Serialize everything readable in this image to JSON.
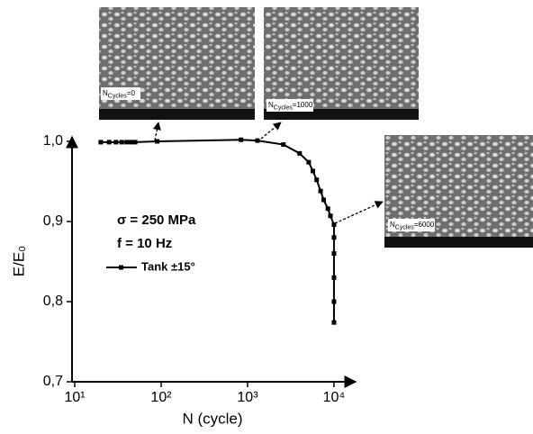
{
  "chart_data": {
    "type": "line",
    "xlabel": "N (cycle)",
    "ylabel": "E/E₀",
    "xlog": true,
    "xlim": [
      10,
      17800
    ],
    "ylim": [
      0.7,
      1.0
    ],
    "xticks": [
      {
        "value": 10,
        "label": "10¹"
      },
      {
        "value": 100,
        "label": "10²"
      },
      {
        "value": 1000,
        "label": "10³"
      },
      {
        "value": 10000,
        "label": "10⁴"
      }
    ],
    "yticks": [
      {
        "value": 0.7,
        "label": "0,7"
      },
      {
        "value": 0.8,
        "label": "0,8"
      },
      {
        "value": 0.9,
        "label": "0,9"
      },
      {
        "value": 1.0,
        "label": "1,0"
      }
    ],
    "annotations": [
      "σ = 250 MPa",
      "f = 10 Hz"
    ],
    "series": [
      {
        "name": "Tank ±15°",
        "color": "#000000",
        "x": [
          20,
          25,
          30,
          35,
          40,
          45,
          50,
          90,
          840,
          1300,
          2600,
          4000,
          5100,
          5700,
          6300,
          7000,
          7600,
          8500,
          9100,
          10000,
          10000,
          10000,
          10000,
          10000,
          10000
        ],
        "values": [
          0.999,
          0.999,
          0.999,
          0.999,
          0.999,
          0.999,
          0.999,
          1.0,
          1.002,
          1.001,
          0.996,
          0.985,
          0.974,
          0.963,
          0.952,
          0.938,
          0.927,
          0.916,
          0.907,
          0.896,
          0.88,
          0.86,
          0.83,
          0.8,
          0.774
        ]
      }
    ],
    "images": [
      {
        "label_base": "N",
        "label_sub": "Cycles",
        "label_value": "=0"
      },
      {
        "label_base": "N",
        "label_sub": "Cycles",
        "label_value": "=1000"
      },
      {
        "label_base": "N",
        "label_sub": "Cycles",
        "label_value": "=6000"
      }
    ]
  }
}
